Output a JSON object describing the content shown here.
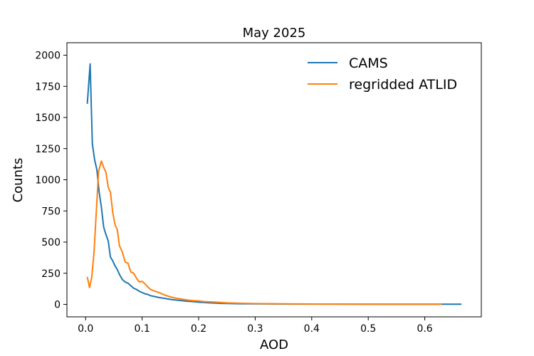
{
  "chart_data": {
    "type": "line",
    "title": "May 2025",
    "xlabel": "AOD",
    "ylabel": "Counts",
    "xlim": [
      -0.033,
      0.7
    ],
    "ylim": [
      -100,
      2100
    ],
    "xticks": [
      0.0,
      0.1,
      0.2,
      0.3,
      0.4,
      0.5,
      0.6
    ],
    "xtick_labels": [
      "0.0",
      "0.1",
      "0.2",
      "0.3",
      "0.4",
      "0.5",
      "0.6"
    ],
    "yticks": [
      0,
      250,
      500,
      750,
      1000,
      1250,
      1500,
      1750,
      2000
    ],
    "ytick_labels": [
      "0",
      "250",
      "500",
      "750",
      "1000",
      "1250",
      "1500",
      "1750",
      "2000"
    ],
    "grid": false,
    "legend_position": "top-right",
    "series": [
      {
        "name": "CAMS",
        "color": "#1f77b4",
        "x": [
          0.003,
          0.008,
          0.012,
          0.016,
          0.02,
          0.024,
          0.028,
          0.032,
          0.036,
          0.04,
          0.044,
          0.048,
          0.052,
          0.056,
          0.06,
          0.065,
          0.07,
          0.075,
          0.08,
          0.085,
          0.09,
          0.095,
          0.1,
          0.105,
          0.11,
          0.115,
          0.12,
          0.13,
          0.14,
          0.15,
          0.16,
          0.17,
          0.18,
          0.19,
          0.2,
          0.21,
          0.22,
          0.23,
          0.24,
          0.25,
          0.27,
          0.3,
          0.35,
          0.4,
          0.45,
          0.5,
          0.55,
          0.6,
          0.63,
          0.665
        ],
        "y": [
          1610,
          1930,
          1290,
          1160,
          1080,
          900,
          780,
          620,
          560,
          510,
          380,
          350,
          310,
          280,
          240,
          200,
          180,
          170,
          150,
          130,
          120,
          105,
          95,
          85,
          80,
          70,
          65,
          55,
          48,
          40,
          35,
          30,
          25,
          22,
          18,
          15,
          12,
          10,
          8,
          7,
          5,
          4,
          3,
          2,
          2,
          1,
          1,
          1,
          1,
          1
        ]
      },
      {
        "name": "regridded ATLID",
        "color": "#ff7f0e",
        "x": [
          0.003,
          0.007,
          0.011,
          0.015,
          0.019,
          0.023,
          0.028,
          0.032,
          0.036,
          0.04,
          0.044,
          0.048,
          0.052,
          0.056,
          0.06,
          0.065,
          0.07,
          0.075,
          0.08,
          0.085,
          0.09,
          0.095,
          0.1,
          0.105,
          0.11,
          0.115,
          0.12,
          0.13,
          0.14,
          0.15,
          0.16,
          0.17,
          0.18,
          0.19,
          0.2,
          0.21,
          0.22,
          0.23,
          0.24,
          0.25,
          0.27,
          0.3,
          0.35,
          0.4,
          0.45,
          0.5,
          0.55,
          0.6,
          0.63
        ],
        "y": [
          220,
          135,
          220,
          420,
          750,
          1070,
          1150,
          1100,
          1060,
          940,
          900,
          740,
          640,
          600,
          470,
          420,
          340,
          330,
          260,
          250,
          210,
          180,
          185,
          165,
          140,
          120,
          110,
          95,
          75,
          60,
          50,
          42,
          35,
          30,
          28,
          22,
          20,
          18,
          15,
          12,
          9,
          6,
          4,
          3,
          2,
          2,
          1,
          1,
          1
        ]
      }
    ]
  }
}
